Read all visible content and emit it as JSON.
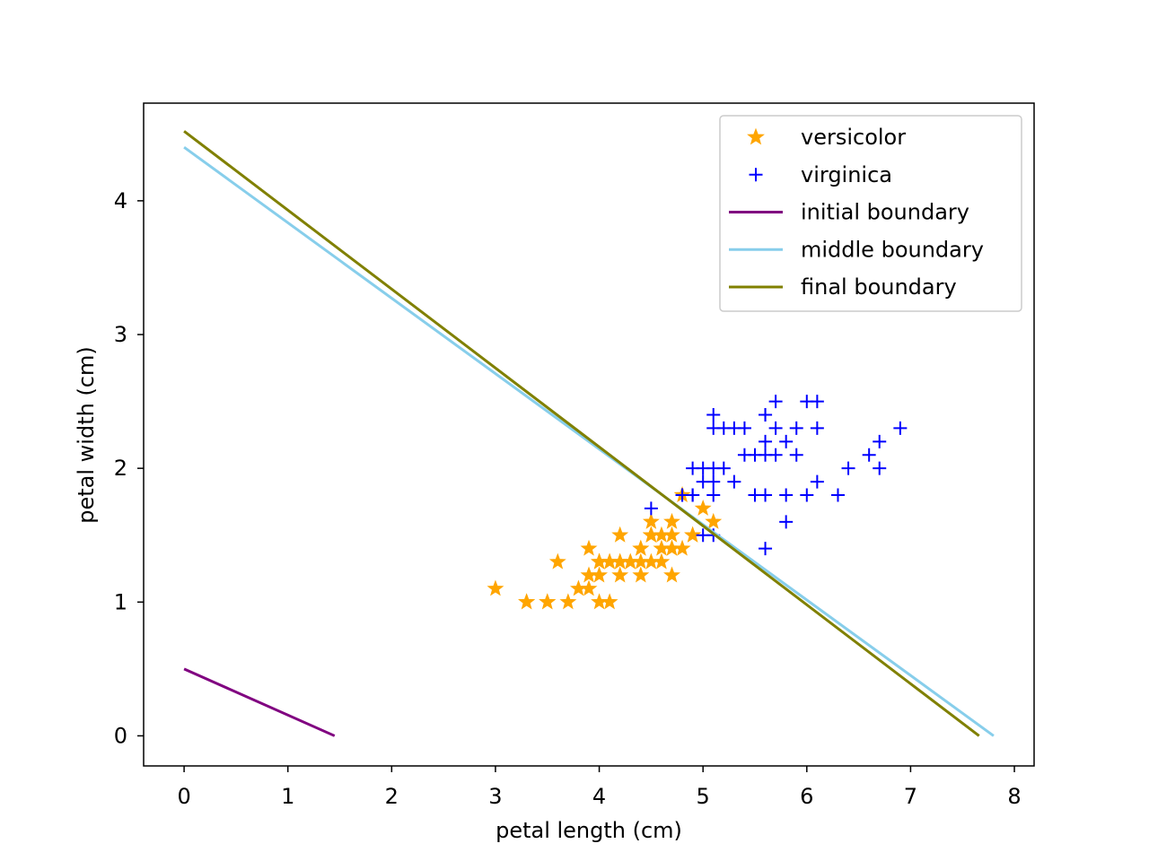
{
  "chart_data": {
    "type": "scatter",
    "title": "",
    "xlabel": "petal length (cm)",
    "ylabel": "petal width (cm)",
    "xlim": [
      -0.39,
      8.19
    ],
    "ylim": [
      -0.225,
      4.73
    ],
    "xticks": [
      0,
      1,
      2,
      3,
      4,
      5,
      6,
      7,
      8
    ],
    "yticks": [
      0,
      1,
      2,
      3,
      4
    ],
    "grid": false,
    "legend_position": "top-right",
    "series": [
      {
        "name": "versicolor",
        "kind": "scatter",
        "marker": "star",
        "color": "#ffa500",
        "points": [
          [
            4.7,
            1.4
          ],
          [
            4.5,
            1.5
          ],
          [
            4.9,
            1.5
          ],
          [
            4.0,
            1.3
          ],
          [
            4.6,
            1.5
          ],
          [
            4.5,
            1.3
          ],
          [
            4.7,
            1.6
          ],
          [
            3.3,
            1.0
          ],
          [
            4.6,
            1.3
          ],
          [
            3.9,
            1.4
          ],
          [
            3.5,
            1.0
          ],
          [
            4.2,
            1.5
          ],
          [
            4.0,
            1.0
          ],
          [
            4.7,
            1.4
          ],
          [
            3.6,
            1.3
          ],
          [
            4.4,
            1.4
          ],
          [
            4.5,
            1.5
          ],
          [
            4.1,
            1.0
          ],
          [
            4.5,
            1.5
          ],
          [
            3.9,
            1.1
          ],
          [
            4.8,
            1.8
          ],
          [
            4.0,
            1.3
          ],
          [
            4.9,
            1.5
          ],
          [
            4.7,
            1.2
          ],
          [
            4.3,
            1.3
          ],
          [
            4.4,
            1.4
          ],
          [
            4.8,
            1.4
          ],
          [
            5.0,
            1.7
          ],
          [
            4.5,
            1.5
          ],
          [
            3.5,
            1.0
          ],
          [
            3.8,
            1.1
          ],
          [
            3.7,
            1.0
          ],
          [
            3.9,
            1.2
          ],
          [
            5.1,
            1.6
          ],
          [
            4.5,
            1.5
          ],
          [
            4.5,
            1.6
          ],
          [
            4.7,
            1.5
          ],
          [
            4.4,
            1.3
          ],
          [
            4.1,
            1.3
          ],
          [
            4.0,
            1.3
          ],
          [
            4.4,
            1.2
          ],
          [
            4.6,
            1.4
          ],
          [
            4.0,
            1.2
          ],
          [
            3.3,
            1.0
          ],
          [
            4.2,
            1.3
          ],
          [
            4.2,
            1.2
          ],
          [
            4.2,
            1.3
          ],
          [
            4.3,
            1.3
          ],
          [
            3.0,
            1.1
          ],
          [
            4.1,
            1.3
          ]
        ]
      },
      {
        "name": "virginica",
        "kind": "scatter",
        "marker": "plus",
        "color": "#0000ff",
        "points": [
          [
            6.0,
            2.5
          ],
          [
            5.1,
            1.9
          ],
          [
            5.9,
            2.1
          ],
          [
            5.6,
            1.8
          ],
          [
            5.8,
            2.2
          ],
          [
            6.6,
            2.1
          ],
          [
            4.5,
            1.7
          ],
          [
            6.3,
            1.8
          ],
          [
            5.8,
            1.8
          ],
          [
            6.1,
            2.5
          ],
          [
            5.1,
            2.0
          ],
          [
            5.3,
            1.9
          ],
          [
            5.5,
            2.1
          ],
          [
            5.0,
            2.0
          ],
          [
            5.1,
            2.4
          ],
          [
            5.3,
            2.3
          ],
          [
            5.5,
            1.8
          ],
          [
            6.7,
            2.2
          ],
          [
            6.9,
            2.3
          ],
          [
            5.0,
            1.5
          ],
          [
            5.7,
            2.3
          ],
          [
            4.9,
            2.0
          ],
          [
            6.7,
            2.0
          ],
          [
            4.9,
            1.8
          ],
          [
            5.7,
            2.1
          ],
          [
            6.0,
            1.8
          ],
          [
            4.8,
            1.8
          ],
          [
            4.9,
            1.8
          ],
          [
            5.6,
            2.1
          ],
          [
            5.8,
            1.6
          ],
          [
            6.1,
            1.9
          ],
          [
            6.4,
            2.0
          ],
          [
            5.6,
            2.2
          ],
          [
            5.1,
            1.5
          ],
          [
            5.6,
            1.4
          ],
          [
            6.1,
            2.3
          ],
          [
            5.6,
            2.4
          ],
          [
            5.5,
            1.8
          ],
          [
            4.8,
            1.8
          ],
          [
            5.4,
            2.1
          ],
          [
            5.6,
            2.4
          ],
          [
            5.1,
            2.3
          ],
          [
            5.9,
            2.3
          ],
          [
            5.7,
            2.5
          ],
          [
            5.2,
            2.3
          ],
          [
            5.0,
            1.9
          ],
          [
            5.2,
            2.0
          ],
          [
            5.4,
            2.3
          ],
          [
            5.1,
            1.8
          ]
        ]
      },
      {
        "name": "initial boundary",
        "kind": "line",
        "color": "#800080",
        "points": [
          [
            0,
            0.5
          ],
          [
            1.45,
            0
          ]
        ]
      },
      {
        "name": "middle boundary",
        "kind": "line",
        "color": "#87ceeb",
        "points": [
          [
            0,
            4.4
          ],
          [
            7.8,
            0
          ]
        ]
      },
      {
        "name": "final boundary",
        "kind": "line",
        "color": "#808000",
        "points": [
          [
            0,
            4.52
          ],
          [
            7.66,
            0
          ]
        ]
      }
    ]
  }
}
